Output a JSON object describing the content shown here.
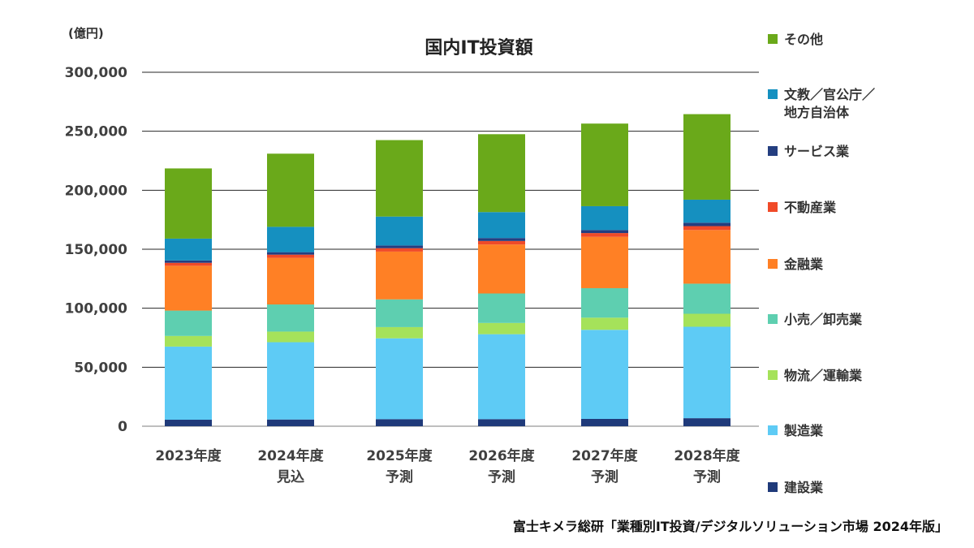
{
  "chart_data": {
    "type": "bar",
    "stacked": true,
    "title": "国内IT投資額",
    "unit_label": "(億円)",
    "source": "富士キメラ総研「業種別IT投資/デジタルソリューション市場 2024年版」",
    "ylim": [
      0,
      300000
    ],
    "yticks": [
      0,
      50000,
      100000,
      150000,
      200000,
      250000,
      300000
    ],
    "ytick_labels": [
      "0",
      "50,000",
      "100,000",
      "150,000",
      "200,000",
      "250,000",
      "300,000"
    ],
    "grid": true,
    "legend_position": "right",
    "categories": [
      [
        "2023年度"
      ],
      [
        "2024年度",
        "見込"
      ],
      [
        "2025年度",
        "予測"
      ],
      [
        "2026年度",
        "予測"
      ],
      [
        "2027年度",
        "予測"
      ],
      [
        "2028年度",
        "予測"
      ]
    ],
    "series": [
      {
        "name": "建設業",
        "color": "#1f3a7a",
        "values": [
          5500,
          5700,
          6000,
          6000,
          6200,
          6800
        ]
      },
      {
        "name": "製造業",
        "color": "#5ecbf5",
        "values": [
          62000,
          65500,
          68500,
          72000,
          75500,
          77500
        ]
      },
      {
        "name": "物流／運輸業",
        "color": "#a5e25a",
        "values": [
          9000,
          9000,
          9500,
          9500,
          10300,
          11000
        ]
      },
      {
        "name": "小売／卸売業",
        "color": "#5ecfb0",
        "values": [
          21500,
          23000,
          23500,
          25000,
          25000,
          25500
        ]
      },
      {
        "name": "金融業",
        "color": "#ff8025",
        "values": [
          38000,
          39500,
          40500,
          41500,
          43500,
          45500
        ]
      },
      {
        "name": "不動産業",
        "color": "#f04a28",
        "values": [
          2500,
          2700,
          2900,
          3000,
          3200,
          3300
        ]
      },
      {
        "name": "サービス業",
        "color": "#243e80",
        "values": [
          2000,
          2100,
          2300,
          2500,
          2600,
          2900
        ]
      },
      {
        "name": "文教／官公庁／地方自治体",
        "label_lines": [
          "文教／官公庁／",
          "地方自治体"
        ],
        "color": "#1590c0",
        "values": [
          18500,
          21500,
          24500,
          22000,
          20200,
          19500
        ]
      },
      {
        "name": "その他",
        "color": "#6aa91a",
        "values": [
          59500,
          62000,
          64800,
          66000,
          70000,
          72500
        ]
      }
    ],
    "legend_order": [
      "その他",
      "文教／官公庁／地方自治体",
      "サービス業",
      "不動産業",
      "金融業",
      "小売／卸売業",
      "物流／運輸業",
      "製造業",
      "建設業"
    ]
  }
}
